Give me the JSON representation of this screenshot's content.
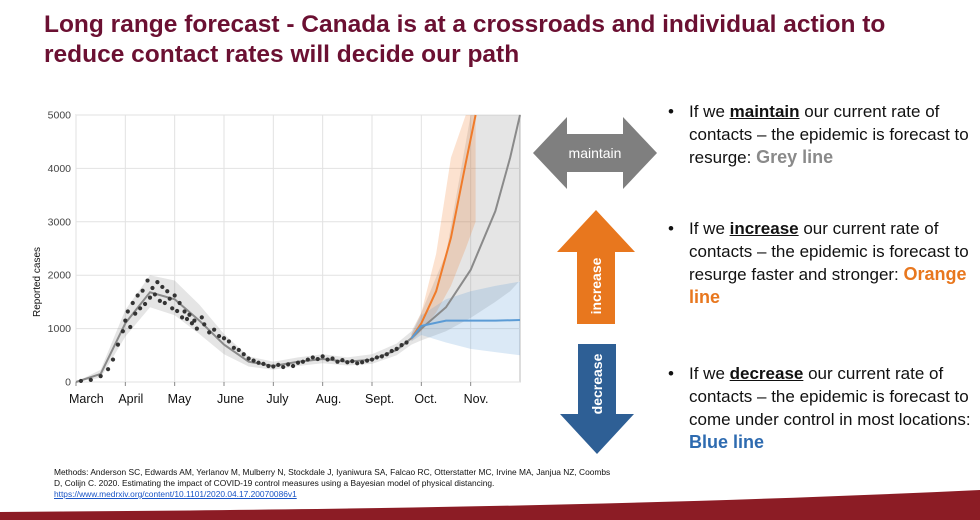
{
  "title": "Long range forecast - Canada is at a crossroads and individual action to reduce contact rates will decide our path",
  "chart_data": {
    "type": "line",
    "ylabel": "Reported cases",
    "ylim": [
      0,
      5000
    ],
    "yticks": [
      0,
      1000,
      2000,
      3000,
      4000,
      5000
    ],
    "ytick_labels": [
      "0",
      "1000",
      "2000",
      "3000",
      "4000",
      "5000"
    ],
    "x_domain": [
      0,
      9
    ],
    "xtick_positions": [
      0,
      1,
      2,
      3,
      4,
      5,
      6,
      7,
      8
    ],
    "xtick_labels": [
      "March",
      "April",
      "May",
      "June",
      "July",
      "Aug.",
      "Sept.",
      "Oct.",
      "Nov."
    ],
    "grid": true,
    "observed": [
      [
        0.1,
        20
      ],
      [
        0.3,
        40
      ],
      [
        0.5,
        110
      ],
      [
        0.65,
        240
      ],
      [
        0.75,
        420
      ],
      [
        0.85,
        700
      ],
      [
        0.95,
        950
      ],
      [
        1.0,
        1150
      ],
      [
        1.05,
        1320
      ],
      [
        1.1,
        1030
      ],
      [
        1.15,
        1480
      ],
      [
        1.2,
        1280
      ],
      [
        1.25,
        1620
      ],
      [
        1.3,
        1380
      ],
      [
        1.35,
        1710
      ],
      [
        1.4,
        1460
      ],
      [
        1.45,
        1900
      ],
      [
        1.5,
        1580
      ],
      [
        1.55,
        1760
      ],
      [
        1.6,
        1640
      ],
      [
        1.65,
        1870
      ],
      [
        1.7,
        1520
      ],
      [
        1.75,
        1780
      ],
      [
        1.8,
        1480
      ],
      [
        1.85,
        1700
      ],
      [
        1.9,
        1560
      ],
      [
        1.95,
        1380
      ],
      [
        2.0,
        1620
      ],
      [
        2.05,
        1330
      ],
      [
        2.1,
        1480
      ],
      [
        2.15,
        1210
      ],
      [
        2.2,
        1320
      ],
      [
        2.25,
        1180
      ],
      [
        2.3,
        1260
      ],
      [
        2.35,
        1100
      ],
      [
        2.4,
        1150
      ],
      [
        2.45,
        1000
      ],
      [
        2.55,
        1210
      ],
      [
        2.6,
        1080
      ],
      [
        2.7,
        930
      ],
      [
        2.8,
        980
      ],
      [
        2.9,
        860
      ],
      [
        3.0,
        820
      ],
      [
        3.1,
        760
      ],
      [
        3.2,
        640
      ],
      [
        3.3,
        600
      ],
      [
        3.4,
        520
      ],
      [
        3.5,
        440
      ],
      [
        3.6,
        400
      ],
      [
        3.7,
        360
      ],
      [
        3.8,
        340
      ],
      [
        3.9,
        300
      ],
      [
        4.0,
        290
      ],
      [
        4.1,
        320
      ],
      [
        4.2,
        280
      ],
      [
        4.3,
        330
      ],
      [
        4.4,
        300
      ],
      [
        4.5,
        360
      ],
      [
        4.6,
        380
      ],
      [
        4.7,
        420
      ],
      [
        4.8,
        460
      ],
      [
        4.9,
        430
      ],
      [
        5.0,
        480
      ],
      [
        5.1,
        420
      ],
      [
        5.2,
        440
      ],
      [
        5.3,
        380
      ],
      [
        5.4,
        410
      ],
      [
        5.5,
        370
      ],
      [
        5.6,
        390
      ],
      [
        5.7,
        350
      ],
      [
        5.8,
        370
      ],
      [
        5.9,
        400
      ],
      [
        6.0,
        420
      ],
      [
        6.1,
        460
      ],
      [
        6.2,
        480
      ],
      [
        6.3,
        520
      ],
      [
        6.4,
        580
      ],
      [
        6.5,
        620
      ],
      [
        6.6,
        690
      ],
      [
        6.7,
        740
      ]
    ],
    "series": [
      {
        "name": "Grey line (maintain)",
        "color": "#8a8a8a",
        "x": [
          0,
          0.5,
          1,
          1.5,
          2,
          2.5,
          3,
          3.5,
          4,
          4.5,
          5,
          5.5,
          6,
          6.5,
          6.8,
          7,
          7.5,
          8,
          8.5,
          8.8,
          9
        ],
        "y": [
          0,
          150,
          1100,
          1680,
          1550,
          1150,
          700,
          380,
          300,
          380,
          430,
          380,
          420,
          600,
          820,
          1000,
          1400,
          2100,
          3200,
          4200,
          5000
        ],
        "band_lower": [
          0,
          80,
          850,
          1400,
          1250,
          900,
          520,
          290,
          230,
          300,
          350,
          310,
          340,
          500,
          700,
          780,
          950,
          1200,
          1500,
          1700,
          1900
        ],
        "band_upper": [
          0,
          230,
          1350,
          2000,
          1900,
          1450,
          900,
          480,
          380,
          460,
          520,
          460,
          520,
          720,
          950,
          1300,
          2400,
          5000,
          5000,
          5000,
          5000
        ]
      },
      {
        "name": "Orange line (increase)",
        "color": "#f07b2a",
        "x": [
          6.8,
          7.0,
          7.3,
          7.6,
          7.9,
          8.1
        ],
        "y": [
          820,
          1100,
          1700,
          2700,
          4100,
          5000
        ],
        "band_lower": [
          760,
          950,
          1300,
          1800,
          2500,
          3000
        ],
        "band_upper": [
          900,
          1300,
          2400,
          4200,
          5000,
          5000
        ]
      },
      {
        "name": "Blue line (decrease)",
        "color": "#5b9bd5",
        "x": [
          6.8,
          7,
          7.5,
          8,
          8.5,
          9
        ],
        "y": [
          820,
          1050,
          1150,
          1150,
          1150,
          1160
        ],
        "band_lower": [
          760,
          880,
          740,
          620,
          560,
          500
        ],
        "band_upper": [
          900,
          1250,
          1550,
          1700,
          1800,
          1880
        ]
      }
    ]
  },
  "arrows": {
    "maintain": {
      "label": "maintain",
      "color": "#7f7f7f"
    },
    "increase": {
      "label": "increase",
      "color": "#e8771e"
    },
    "decrease": {
      "label": "decrease",
      "color": "#2e5f95"
    }
  },
  "bullets": [
    {
      "pre": "If we ",
      "keyword": "maintain",
      "mid": " our current rate of contacts – the epidemic is forecast to resurge: ",
      "color_text": "Grey line",
      "color_hex": "#8a8a8a"
    },
    {
      "pre": "If we ",
      "keyword": "increase",
      "mid": " our current rate of contacts – the epidemic is forecast to resurge faster and stronger: ",
      "color_text": "Orange line",
      "color_hex": "#e8771e"
    },
    {
      "pre": "If we ",
      "keyword": "decrease",
      "mid": " our current rate of contacts – the epidemic is forecast to come under control in most locations: ",
      "color_text": "Blue line",
      "color_hex": "#2e6bb0"
    }
  ],
  "bullet_symbol": "•",
  "methods": {
    "text": "Methods: Anderson SC, Edwards AM, Yerlanov M, Mulberry N, Stockdale J, Iyaniwura SA, Falcao RC, Otterstatter MC, Irvine MA, Janjua NZ, Coombs D, Colijn C. 2020. Estimating the impact of COVID-19 control measures using a Bayesian model of physical distancing. ",
    "link": "https://www.medrxiv.org/content/10.1101/2020.04.17.20070086v1"
  },
  "footer_color": "#8c1c25"
}
